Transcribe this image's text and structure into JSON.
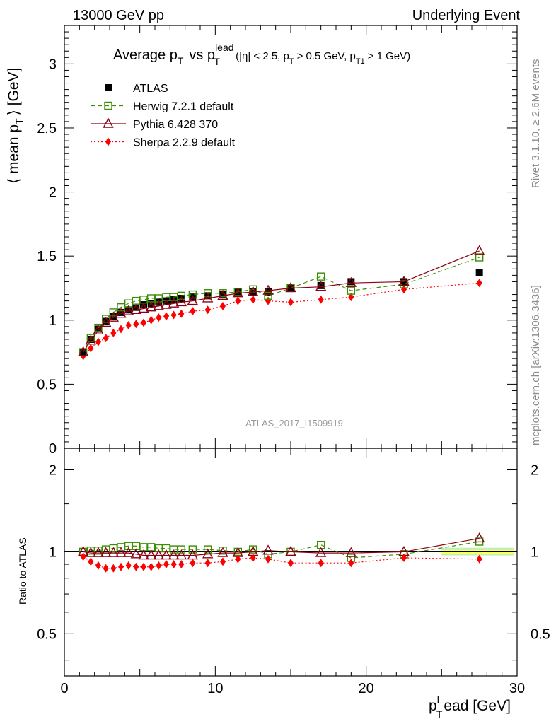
{
  "header": {
    "left": "13000 GeV pp",
    "right": "Underlying Event"
  },
  "side_labels": {
    "rivet": "Rivet 3.1.10, ≥ 2.6M events",
    "mcplots": "mcplots.cern.ch [arXiv:1306.3436]"
  },
  "watermark": "ATLAS_2017_I1509919",
  "title": {
    "main": "Average p",
    "main_sub": "T",
    "vs": "vs p",
    "vs_sup": "lead",
    "vs_sub": "T",
    "cuts_a": "(|η| < 2.5, p",
    "cuts_a_sub": "T",
    "cuts_b": "> 0.5 GeV, p",
    "cuts_b_sub": "T1",
    "cuts_c": "> 1 GeV)"
  },
  "axes": {
    "ylabel_main": "⟨ mean p",
    "ylabel_main_sub": "T",
    "ylabel_main_end": "⟩ [GeV]",
    "ylabel_ratio": "Ratio to ATLAS",
    "xlabel_a": "p",
    "xlabel_sup": "l",
    "xlabel_sub": "T",
    "xlabel_b": "ead [GeV]"
  },
  "colors": {
    "atlas": "#000000",
    "herwig": "#3a8f00",
    "pythia": "#8b0015",
    "sherpa": "#ff0000",
    "band_inner": "#ffff66",
    "band_outer": "#bff2b0"
  },
  "chart_data": [
    {
      "type": "scatter",
      "panel": "main",
      "xlim": [
        0,
        30
      ],
      "ylim": [
        0,
        3.3
      ],
      "xticks": [
        0,
        10,
        20,
        30
      ],
      "yticks": [
        0,
        0.5,
        1,
        1.5,
        2,
        2.5,
        3
      ],
      "ytick_labels": [
        "0",
        "0.5",
        "1",
        "1.5",
        "2",
        "2.5",
        "3"
      ],
      "x": [
        1.25,
        1.75,
        2.25,
        2.75,
        3.25,
        3.75,
        4.25,
        4.75,
        5.25,
        5.75,
        6.25,
        6.75,
        7.25,
        7.75,
        8.5,
        9.5,
        10.5,
        11.5,
        12.5,
        13.5,
        15.0,
        17.0,
        19.0,
        22.5,
        27.5
      ],
      "series": [
        {
          "name": "ATLAS",
          "marker": "filled-square",
          "values": [
            0.75,
            0.85,
            0.93,
            0.99,
            1.03,
            1.06,
            1.08,
            1.1,
            1.12,
            1.13,
            1.14,
            1.15,
            1.16,
            1.17,
            1.18,
            1.19,
            1.2,
            1.22,
            1.22,
            1.22,
            1.25,
            1.27,
            1.3,
            1.3,
            1.37
          ]
        },
        {
          "name": "Herwig 7.2.1 default",
          "marker": "open-square",
          "line": "dashed",
          "values": [
            0.75,
            0.86,
            0.94,
            1.01,
            1.06,
            1.1,
            1.13,
            1.15,
            1.16,
            1.17,
            1.17,
            1.18,
            1.18,
            1.19,
            1.2,
            1.21,
            1.21,
            1.22,
            1.24,
            1.19,
            1.25,
            1.34,
            1.23,
            1.28,
            1.49
          ]
        },
        {
          "name": "Pythia 6.428 370",
          "marker": "open-triangle",
          "line": "solid",
          "values": [
            0.75,
            0.84,
            0.92,
            0.98,
            1.02,
            1.05,
            1.07,
            1.08,
            1.09,
            1.1,
            1.11,
            1.12,
            1.13,
            1.14,
            1.15,
            1.17,
            1.19,
            1.21,
            1.22,
            1.23,
            1.25,
            1.26,
            1.29,
            1.3,
            1.54
          ]
        },
        {
          "name": "Sherpa 2.2.9 default",
          "marker": "filled-diamond",
          "line": "dotted",
          "values": [
            0.72,
            0.78,
            0.83,
            0.86,
            0.9,
            0.93,
            0.96,
            0.97,
            0.98,
            1.0,
            1.02,
            1.03,
            1.04,
            1.05,
            1.07,
            1.08,
            1.11,
            1.15,
            1.16,
            1.15,
            1.14,
            1.16,
            1.18,
            1.24,
            1.29
          ]
        }
      ]
    },
    {
      "type": "scatter",
      "panel": "ratio",
      "ylabel": "Ratio to ATLAS",
      "xlim": [
        0,
        30
      ],
      "ylim": [
        0.35,
        2.4
      ],
      "yscale": "log",
      "yticks": [
        0.5,
        1,
        2
      ],
      "ytick_labels": [
        "0.5",
        "1",
        "2"
      ],
      "xtick_labels": [
        "0",
        "10",
        "20",
        "30"
      ],
      "band": {
        "x_from": 25,
        "x_to": 30,
        "inner": [
          0.985,
          1.015
        ],
        "outer": [
          0.97,
          1.035
        ]
      },
      "series": [
        {
          "name": "Herwig 7.2.1 default",
          "values": [
            1.0,
            1.01,
            1.01,
            1.02,
            1.03,
            1.04,
            1.05,
            1.05,
            1.04,
            1.04,
            1.03,
            1.03,
            1.02,
            1.02,
            1.02,
            1.02,
            1.01,
            1.0,
            1.02,
            0.98,
            1.0,
            1.06,
            0.95,
            0.98,
            1.09
          ]
        },
        {
          "name": "Pythia 6.428 370",
          "values": [
            1.0,
            0.99,
            0.99,
            0.99,
            0.99,
            0.99,
            0.99,
            0.98,
            0.97,
            0.97,
            0.97,
            0.97,
            0.97,
            0.97,
            0.97,
            0.98,
            0.99,
            0.99,
            1.0,
            1.01,
            1.0,
            0.99,
            0.99,
            1.0,
            1.12
          ]
        },
        {
          "name": "Sherpa 2.2.9 default",
          "values": [
            0.96,
            0.92,
            0.89,
            0.87,
            0.87,
            0.88,
            0.89,
            0.88,
            0.88,
            0.88,
            0.89,
            0.9,
            0.9,
            0.9,
            0.91,
            0.91,
            0.92,
            0.94,
            0.95,
            0.94,
            0.91,
            0.91,
            0.91,
            0.95,
            0.94
          ]
        }
      ]
    }
  ]
}
